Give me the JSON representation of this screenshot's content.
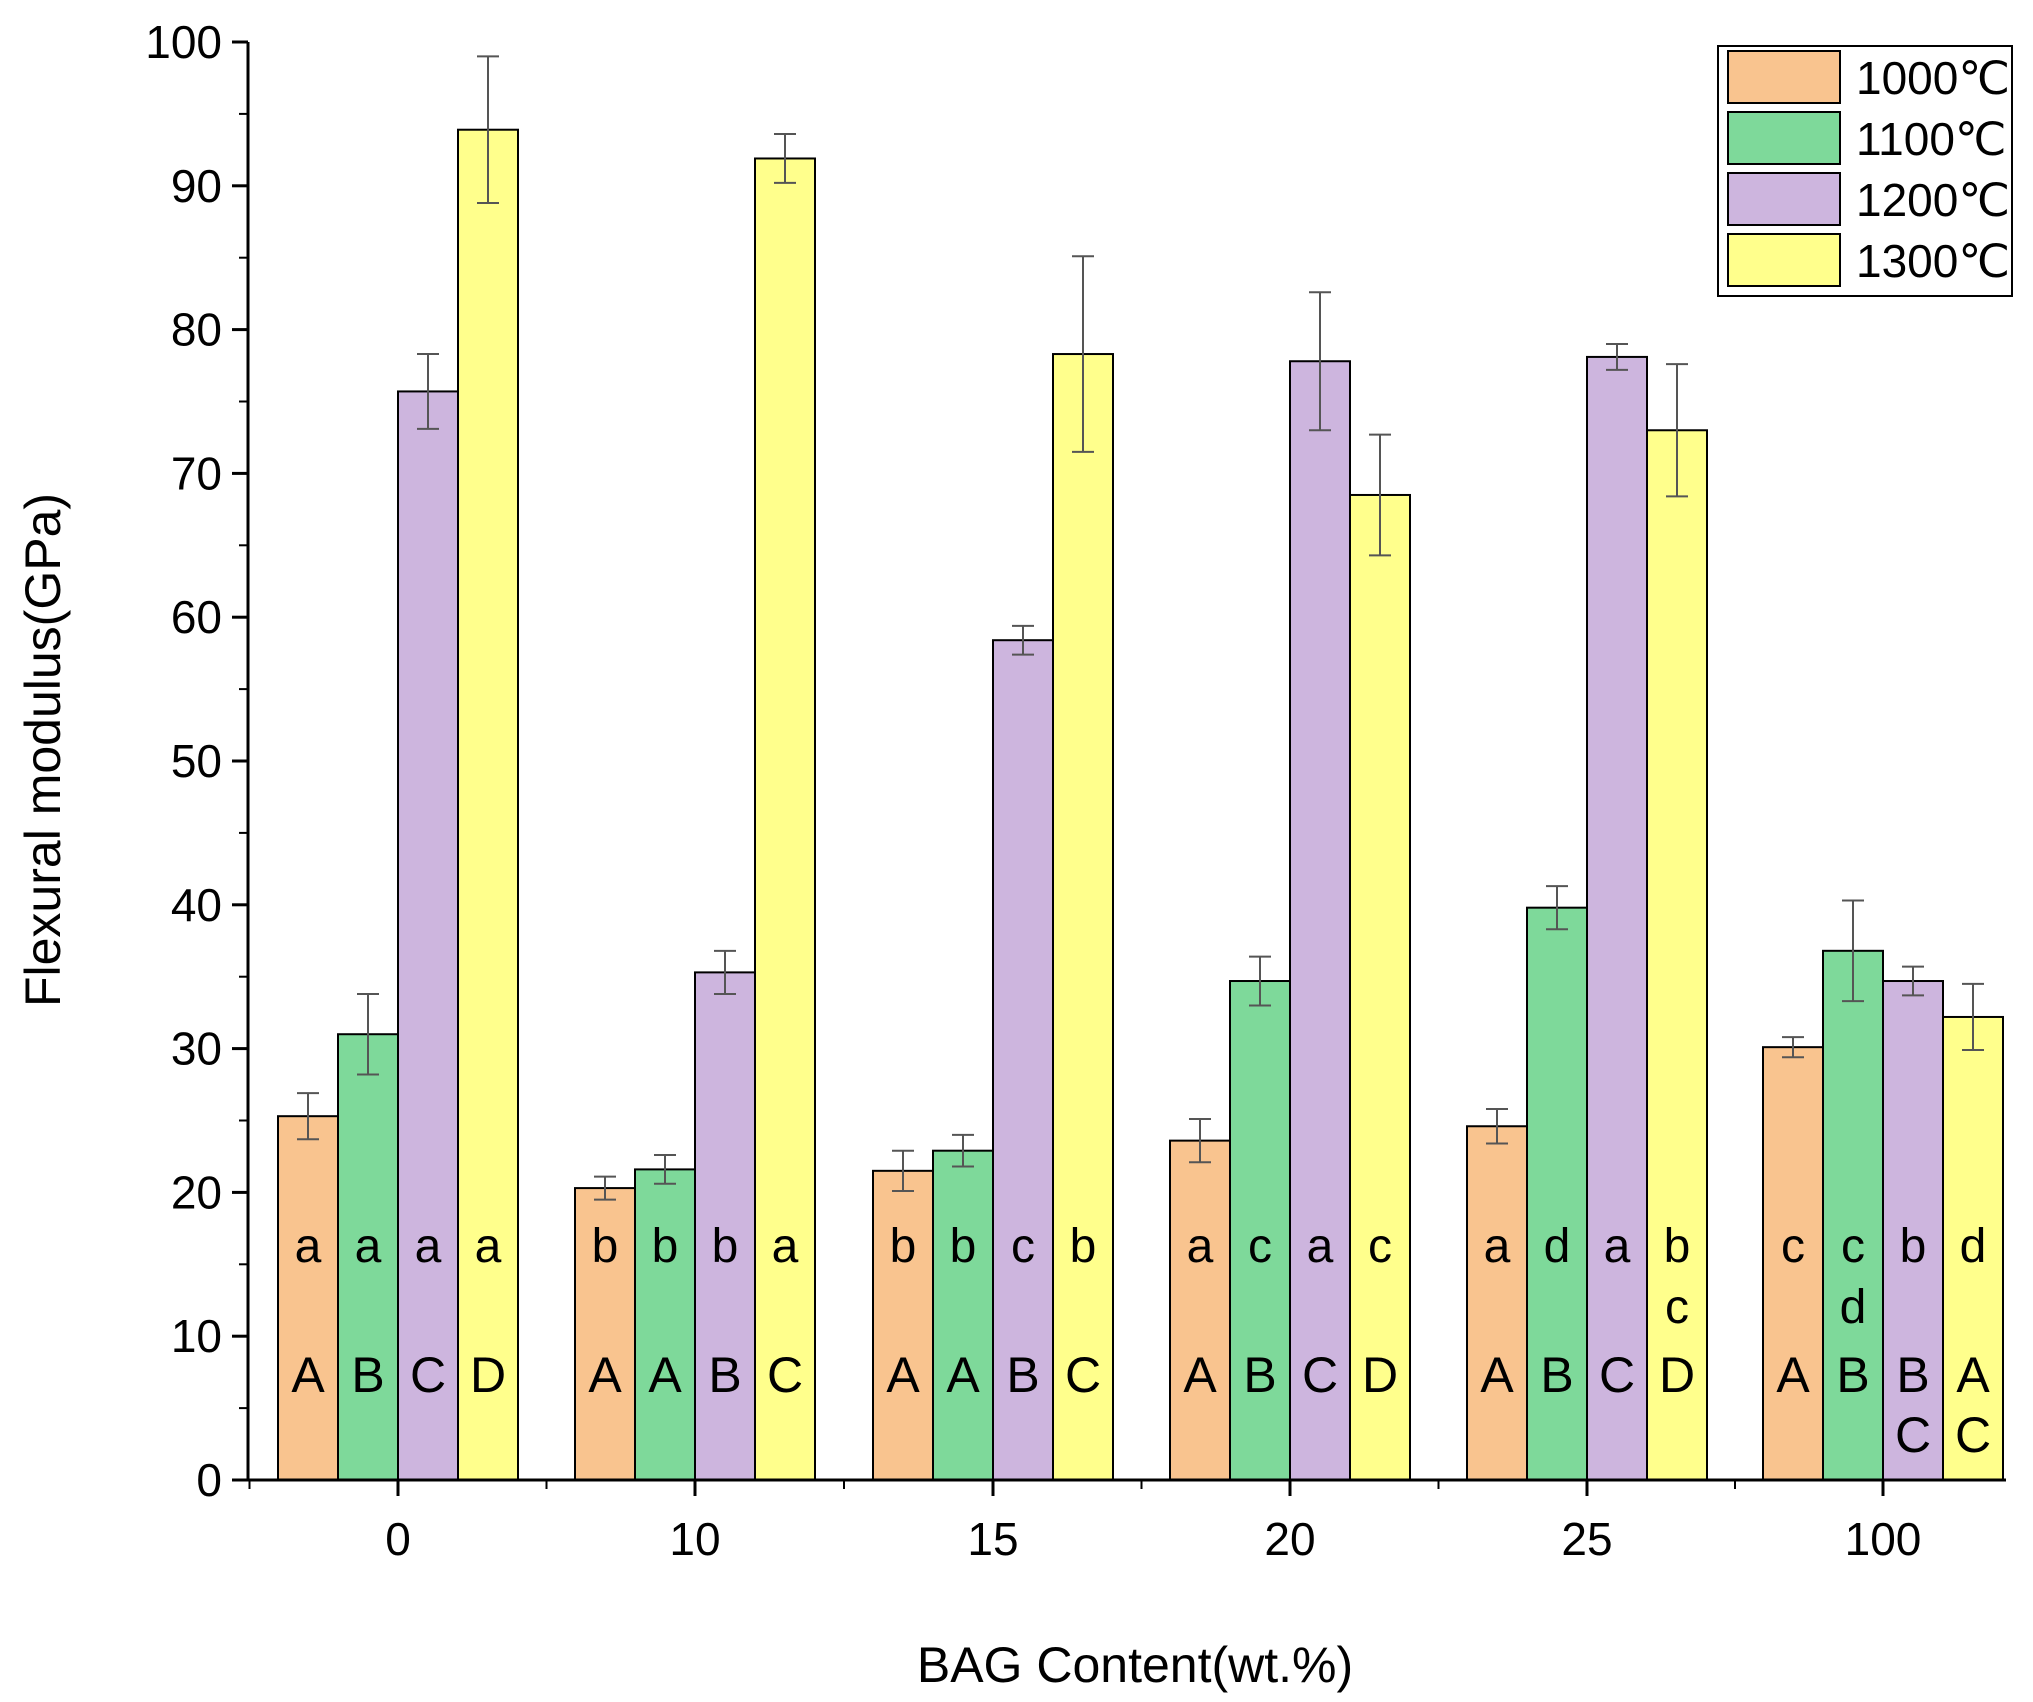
{
  "chart_data": {
    "type": "bar",
    "title": "",
    "xlabel": "BAG Content(wt.%)",
    "ylabel": "Flexural modulus(GPa)",
    "ylim": [
      0,
      100
    ],
    "yticks": [
      0,
      10,
      20,
      30,
      40,
      50,
      60,
      70,
      80,
      90,
      100
    ],
    "grid": false,
    "legend_position": "top-right",
    "categories": [
      "0",
      "10",
      "15",
      "20",
      "25",
      "100"
    ],
    "series": [
      {
        "name": "1000℃",
        "color": "#F9C48F",
        "values": [
          25.3,
          20.3,
          21.5,
          23.6,
          24.6,
          30.1
        ],
        "errors": [
          1.6,
          0.8,
          1.4,
          1.5,
          1.2,
          0.7
        ],
        "lower_letters": [
          "a",
          "b",
          "b",
          "a",
          "a",
          "c"
        ],
        "upper_letters": [
          "A",
          "A",
          "A",
          "A",
          "A",
          "A"
        ]
      },
      {
        "name": "1100℃",
        "color": "#7ED99A",
        "values": [
          31.0,
          21.6,
          22.9,
          34.7,
          39.8,
          36.8
        ],
        "errors": [
          2.8,
          1.0,
          1.1,
          1.7,
          1.5,
          3.5
        ],
        "lower_letters": [
          "a",
          "b",
          "b",
          "c",
          "d",
          "c\nd"
        ],
        "upper_letters": [
          "B",
          "A",
          "A",
          "B",
          "B",
          "B"
        ]
      },
      {
        "name": "1200℃",
        "color": "#CDB5DE",
        "values": [
          75.7,
          35.3,
          58.4,
          77.8,
          78.1,
          34.7
        ],
        "errors": [
          2.6,
          1.5,
          1.0,
          4.8,
          0.9,
          1.0
        ],
        "lower_letters": [
          "a",
          "b",
          "c",
          "a",
          "a",
          "b"
        ],
        "upper_letters": [
          "C",
          "B",
          "B",
          "C",
          "C",
          "B\nC"
        ]
      },
      {
        "name": "1300℃",
        "color": "#FFFF8C",
        "values": [
          93.9,
          91.9,
          78.3,
          68.5,
          73.0,
          32.2
        ],
        "errors": [
          5.1,
          1.7,
          6.8,
          4.2,
          4.6,
          2.3
        ],
        "lower_letters": [
          "a",
          "a",
          "b",
          "c",
          "b\nc",
          "d"
        ],
        "upper_letters": [
          "D",
          "C",
          "C",
          "D",
          "D",
          "A\nC"
        ]
      }
    ]
  }
}
